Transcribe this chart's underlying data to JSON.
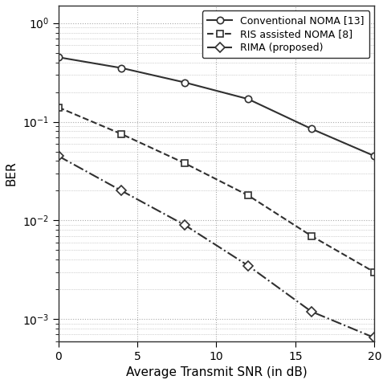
{
  "series": [
    {
      "label": "Conventional NOMA [13]",
      "x": [
        0,
        4,
        8,
        12,
        16,
        20
      ],
      "y": [
        0.45,
        0.35,
        0.25,
        0.17,
        0.085,
        0.045
      ],
      "linestyle": "-",
      "marker": "o",
      "color": "#303030",
      "linewidth": 1.5,
      "markersize": 6
    },
    {
      "label": "RIS assisted NOMA [8]",
      "x": [
        0,
        4,
        8,
        12,
        16,
        20
      ],
      "y": [
        0.14,
        0.075,
        0.038,
        0.018,
        0.007,
        0.003
      ],
      "linestyle": "--",
      "marker": "s",
      "color": "#303030",
      "linewidth": 1.5,
      "markersize": 6
    },
    {
      "label": "RIMA (proposed)",
      "x": [
        0,
        4,
        8,
        12,
        16,
        20
      ],
      "y": [
        0.045,
        0.02,
        0.009,
        0.0035,
        0.0012,
        0.00065
      ],
      "linestyle": "-.",
      "marker": "D",
      "color": "#303030",
      "linewidth": 1.5,
      "markersize": 6
    }
  ],
  "xlabel": "Average Transmit SNR (in dB)",
  "ylabel": "BER",
  "xlim": [
    0,
    20
  ],
  "ylim": [
    0.0006,
    1.5
  ],
  "xticks": [
    0,
    5,
    10,
    15,
    20
  ],
  "background_color": "#ffffff",
  "grid_color": "#aaaaaa",
  "title": ""
}
